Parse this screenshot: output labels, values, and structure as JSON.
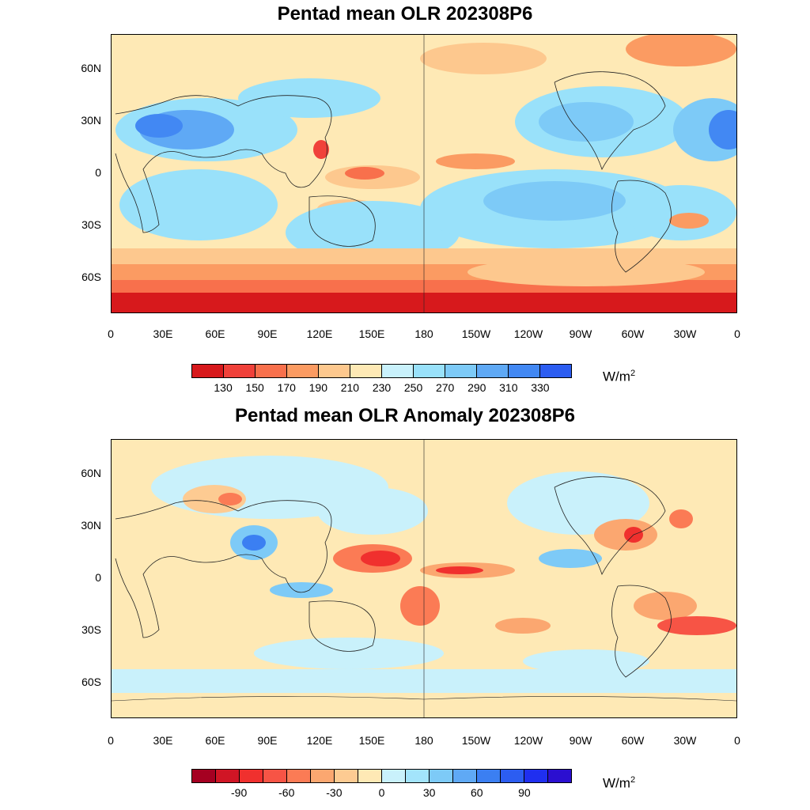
{
  "top": {
    "title": "Pentad mean OLR 202308P6",
    "lat_labels": [
      "60N",
      "30N",
      "0",
      "30S",
      "60S"
    ],
    "lon_labels": [
      "0",
      "30E",
      "60E",
      "90E",
      "120E",
      "150E",
      "180",
      "150W",
      "120W",
      "90W",
      "60W",
      "30W",
      "0"
    ],
    "colorbar": {
      "colors": [
        "#d7191c",
        "#f0413a",
        "#f8704c",
        "#fb9b62",
        "#fdc88e",
        "#fee9b5",
        "#c9f1fb",
        "#99e1fa",
        "#7dcaf7",
        "#5fa9f5",
        "#4288f3",
        "#2c5df1"
      ],
      "ticks": [
        "130",
        "150",
        "170",
        "190",
        "210",
        "230",
        "250",
        "270",
        "290",
        "310",
        "330"
      ]
    },
    "units": "W/m",
    "units_sup": "2"
  },
  "bottom": {
    "title": "Pentad mean OLR Anomaly 202308P6",
    "lat_labels": [
      "60N",
      "30N",
      "0",
      "30S",
      "60S"
    ],
    "lon_labels": [
      "0",
      "30E",
      "60E",
      "90E",
      "120E",
      "150E",
      "180",
      "150W",
      "120W",
      "90W",
      "60W",
      "30W",
      "0"
    ],
    "colorbar": {
      "colors": [
        "#a50021",
        "#d01525",
        "#f0302e",
        "#f75445",
        "#fb7b55",
        "#fba770",
        "#fdcb92",
        "#fee9b5",
        "#c9f1fb",
        "#a3e4fb",
        "#7dcaf7",
        "#5fa9f5",
        "#3b7ff2",
        "#2c5df1",
        "#1f2ff0",
        "#2b0fd0"
      ],
      "ticks": [
        "-90",
        "-60",
        "-30",
        "0",
        "30",
        "60",
        "90"
      ]
    },
    "units": "W/m",
    "units_sup": "2"
  }
}
